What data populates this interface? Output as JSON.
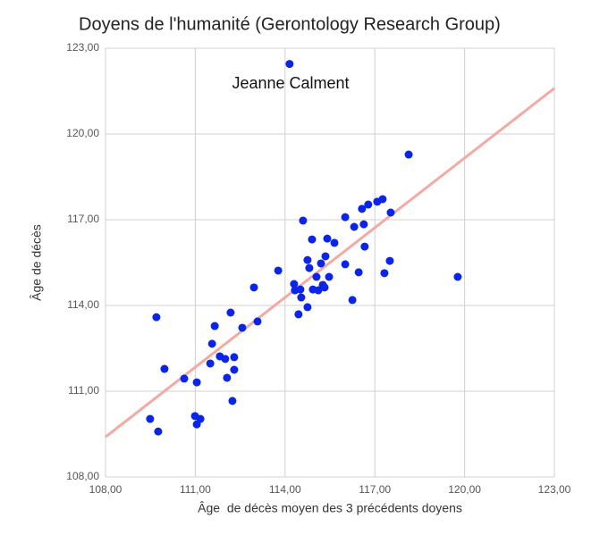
{
  "chart_data": {
    "type": "scatter",
    "title": "Doyens de l'humanité (Gerontology Research Group)",
    "x_label": "Âge  de décès moyen des 3 précédents doyens",
    "y_label": "Âge de décès",
    "annotation": "Jeanne Calment",
    "color": "#0a24e8",
    "x": [
      114.15,
      118.13,
      119.77,
      109.7,
      109.97,
      109.49,
      109.76,
      110.63,
      111.05,
      110.99,
      111.05,
      111.17,
      111.5,
      111.56,
      111.65,
      111.82,
      112.0,
      112.06,
      112.18,
      112.3,
      112.3,
      112.24,
      112.57,
      112.96,
      113.08,
      113.77,
      114.3,
      114.33,
      114.51,
      114.45,
      114.54,
      114.6,
      114.75,
      114.81,
      114.75,
      114.9,
      114.93,
      115.05,
      115.11,
      115.2,
      115.26,
      115.32,
      115.35,
      115.41,
      115.47,
      115.65,
      116.01,
      116.01,
      116.25,
      116.31,
      116.46,
      116.57,
      116.63,
      116.66,
      116.78,
      117.08,
      117.26,
      117.32,
      117.5,
      117.53
    ],
    "y": [
      122.45,
      119.28,
      115.0,
      113.59,
      111.78,
      110.03,
      109.59,
      111.44,
      111.31,
      110.13,
      109.84,
      110.03,
      111.97,
      112.66,
      113.28,
      112.22,
      112.13,
      111.47,
      113.75,
      112.19,
      111.75,
      110.66,
      113.22,
      114.63,
      113.44,
      115.22,
      114.75,
      114.53,
      114.56,
      113.69,
      114.28,
      116.97,
      115.59,
      115.31,
      113.94,
      116.31,
      114.56,
      115.0,
      114.53,
      115.47,
      114.72,
      114.63,
      115.72,
      116.34,
      115.0,
      116.19,
      117.09,
      115.44,
      114.19,
      116.75,
      115.16,
      117.38,
      116.84,
      116.06,
      117.53,
      117.63,
      117.72,
      115.13,
      115.56,
      117.25
    ],
    "trendline": {
      "x": [
        108,
        123
      ],
      "y": [
        109.4,
        121.6
      ],
      "color": "#f2aaa2"
    },
    "xlim": [
      108,
      123
    ],
    "ylim": [
      108,
      123
    ],
    "xticks": [
      {
        "value": 108,
        "label": "108,00"
      },
      {
        "value": 111,
        "label": "111,00"
      },
      {
        "value": 114,
        "label": "114,00"
      },
      {
        "value": 117,
        "label": "117,00"
      },
      {
        "value": 120,
        "label": "120,00"
      },
      {
        "value": 123,
        "label": "123,00"
      }
    ],
    "yticks": [
      {
        "value": 108,
        "label": "108,00"
      },
      {
        "value": 111,
        "label": "111,00"
      },
      {
        "value": 114,
        "label": "114,00"
      },
      {
        "value": 117,
        "label": "117,00"
      },
      {
        "value": 120,
        "label": "120,00"
      },
      {
        "value": 123,
        "label": "123,00"
      }
    ],
    "grid": true
  }
}
